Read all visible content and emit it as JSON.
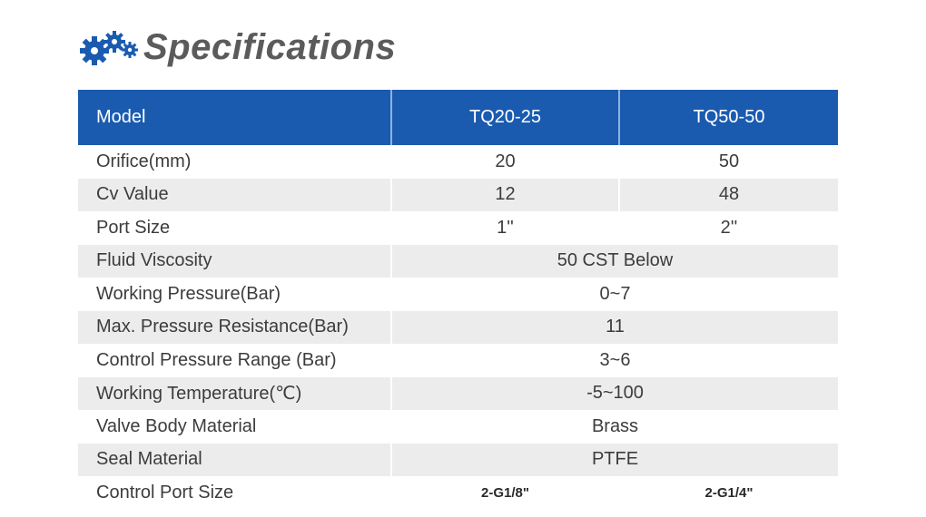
{
  "title": "Specifications",
  "icon": "gears-icon",
  "colors": {
    "header_bg": "#1a5bb0",
    "alt_row": "#ececec",
    "title": "#5b5b5b"
  },
  "table": {
    "headers": [
      "Model",
      "TQ20-25",
      "TQ50-50"
    ],
    "rows": [
      {
        "label": "Orifice(mm)",
        "v1": "20",
        "v2": "50"
      },
      {
        "label": "Cv Value",
        "v1": "12",
        "v2": "48"
      },
      {
        "label": "Port Size",
        "v1": "1''",
        "v2": "2''"
      },
      {
        "label": "Fluid Viscosity",
        "span": "50 CST Below"
      },
      {
        "label": "Working Pressure(Bar)",
        "span": "0~7"
      },
      {
        "label": "Max. Pressure Resistance(Bar)",
        "span": "11"
      },
      {
        "label": "Control Pressure Range (Bar)",
        "span": "3~6"
      },
      {
        "label": "Working Temperature(℃)",
        "span": "-5~100"
      },
      {
        "label": "Valve Body Material",
        "span": "Brass"
      },
      {
        "label": "Seal Material",
        "span": "PTFE"
      },
      {
        "label": "Control Port Size",
        "v1": "2-G1/8\"",
        "v2": "2-G1/4\""
      }
    ]
  }
}
